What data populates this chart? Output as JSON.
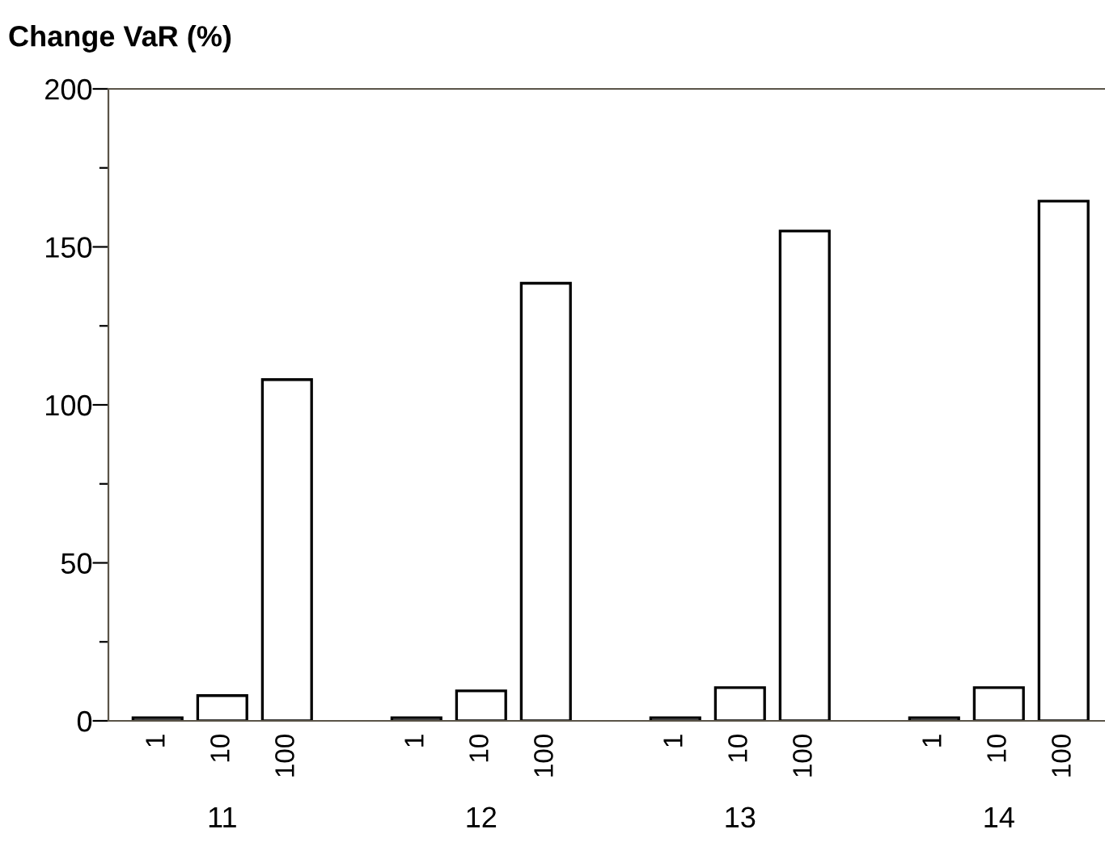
{
  "chart_data": {
    "type": "bar",
    "title": "Change VaR (%)",
    "categories": [
      "11",
      "12",
      "13",
      "14"
    ],
    "series": [
      {
        "name": "1",
        "color": "#ffffff",
        "values": [
          1,
          1,
          1,
          1
        ]
      },
      {
        "name": "10",
        "color": "#ffffff",
        "values": [
          8,
          9.5,
          10.5,
          10.5
        ]
      },
      {
        "name": "100",
        "color": "#ffffff",
        "values": [
          108,
          138.5,
          155,
          164.5
        ]
      }
    ],
    "ylim": [
      0,
      200
    ],
    "yticks": [
      0,
      {
        "value": 25,
        "label": null
      },
      50,
      {
        "value": 75,
        "label": null
      },
      100,
      {
        "value": 125,
        "label": null
      },
      150,
      {
        "value": 175,
        "label": null
      },
      200
    ],
    "grid": false,
    "legend": false
  }
}
